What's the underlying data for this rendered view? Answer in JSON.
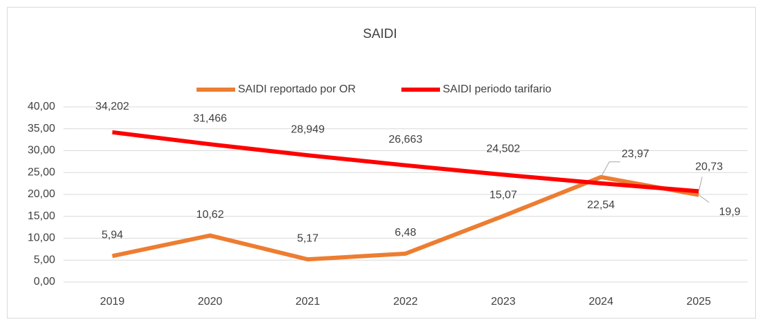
{
  "chart_data": {
    "type": "line",
    "title": "SAIDI",
    "categories": [
      "2019",
      "2020",
      "2021",
      "2022",
      "2023",
      "2024",
      "2025"
    ],
    "series": [
      {
        "name": "SAIDI reportado por OR",
        "color": "#ED7D31",
        "values": [
          5.94,
          10.62,
          5.17,
          6.48,
          15.07,
          23.97,
          19.9
        ],
        "value_labels": [
          "5,94",
          "10,62",
          "5,17",
          "6,48",
          "15,07",
          "23,97",
          "19,9"
        ]
      },
      {
        "name": "SAIDI periodo tarifario",
        "color": "#FF0000",
        "values": [
          34.202,
          31.466,
          28.949,
          26.663,
          24.502,
          22.54,
          20.73
        ],
        "value_labels": [
          "34,202",
          "31,466",
          "28,949",
          "26,663",
          "24,502",
          "22,54",
          "20,73"
        ]
      }
    ],
    "ylim": [
      0,
      40
    ],
    "yticks": [
      {
        "value": 0,
        "label": "0,00"
      },
      {
        "value": 5,
        "label": "5,00"
      },
      {
        "value": 10,
        "label": "10,00"
      },
      {
        "value": 15,
        "label": "15,00"
      },
      {
        "value": 20,
        "label": "20,00"
      },
      {
        "value": 25,
        "label": "25,00"
      },
      {
        "value": 30,
        "label": "30,00"
      },
      {
        "value": 35,
        "label": "35,00"
      },
      {
        "value": 40,
        "label": "40,00"
      }
    ],
    "grid": true,
    "legend": "top"
  }
}
